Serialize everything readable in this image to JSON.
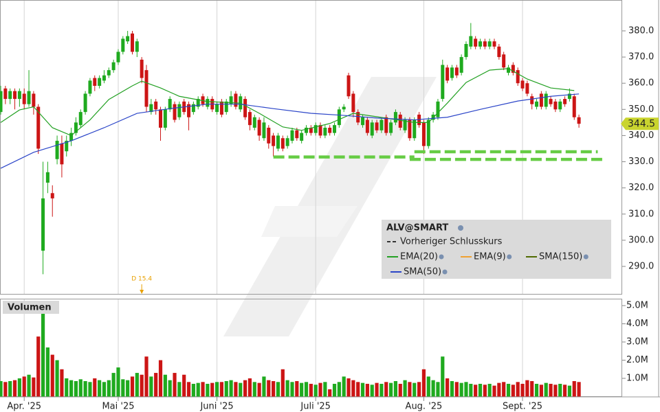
{
  "chart_data": [
    {
      "type": "candlestick",
      "legend_title": "ALV@SMART",
      "xlim": [
        -0.15,
        132.2
      ],
      "ylim": [
        279.5,
        391.8
      ],
      "yticks": [
        {
          "value": 290,
          "label": "290.0"
        },
        {
          "value": 300,
          "label": "300.0"
        },
        {
          "value": 310,
          "label": "310.0"
        },
        {
          "value": 320,
          "label": "320.0"
        },
        {
          "value": 330,
          "label": "330.0"
        },
        {
          "value": 340,
          "label": "340.0"
        },
        {
          "value": 350,
          "label": "350.0"
        },
        {
          "value": 360,
          "label": "360.0"
        },
        {
          "value": 370,
          "label": "370.0"
        },
        {
          "value": 380,
          "label": "380.0"
        }
      ],
      "up_color": "#1faa1f",
      "down_color": "#cc1515",
      "open": [
        349,
        358,
        354,
        357,
        354,
        356,
        352,
        356,
        351,
        296,
        322,
        318,
        331,
        337,
        334,
        338,
        341,
        344,
        349,
        356,
        362,
        359,
        361,
        363,
        365,
        368,
        372,
        376,
        379,
        372,
        369,
        365,
        349,
        353,
        350,
        343,
        350,
        352,
        347,
        353,
        352,
        349,
        351,
        355,
        351,
        354,
        349,
        353,
        349,
        352,
        356,
        350,
        354,
        349,
        343,
        346,
        339,
        343,
        340,
        335,
        339,
        336,
        338,
        342,
        338,
        341,
        343,
        341,
        344,
        340,
        343,
        341,
        344,
        350,
        363,
        356,
        349,
        344,
        346,
        340,
        345,
        342,
        347,
        341,
        345,
        348,
        342,
        346,
        339,
        348,
        345,
        336,
        346,
        347,
        354,
        366,
        362,
        366,
        364,
        370,
        374,
        377,
        374,
        376,
        374,
        376,
        374,
        371,
        364,
        367,
        365,
        361,
        360,
        355,
        351,
        356,
        351,
        354,
        353,
        350,
        354,
        354,
        355,
        347
      ],
      "high": [
        359,
        359,
        358,
        358,
        358,
        358,
        365,
        357,
        352,
        330,
        330,
        321,
        340,
        340,
        340,
        343,
        347,
        350,
        357,
        362,
        363,
        363,
        365,
        366,
        369,
        373,
        378,
        380,
        380,
        377,
        370,
        367,
        354,
        354,
        351,
        351,
        355,
        353,
        353,
        354,
        353,
        353,
        355,
        356,
        355,
        355,
        353,
        354,
        354,
        357,
        357,
        356,
        355,
        350,
        348,
        347,
        347,
        344,
        341,
        341,
        340,
        340,
        343,
        343,
        342,
        344,
        344,
        345,
        345,
        344,
        344,
        345,
        351,
        352,
        364,
        357,
        350,
        348,
        347,
        346,
        346,
        347,
        348,
        346,
        350,
        349,
        347,
        347,
        347,
        349,
        346,
        347,
        349,
        354,
        369,
        367,
        367,
        367,
        371,
        376,
        383,
        378,
        377,
        377,
        377,
        377,
        375,
        372,
        367,
        368,
        366,
        362,
        361,
        356,
        354,
        357,
        357,
        355,
        354,
        354,
        355,
        358,
        356,
        348
      ],
      "low": [
        348,
        352,
        352,
        350,
        351,
        350,
        351,
        348,
        333,
        287,
        318,
        309,
        329,
        324,
        332,
        336,
        340,
        343,
        348,
        355,
        357,
        358,
        360,
        362,
        364,
        367,
        371,
        375,
        371,
        370,
        360,
        349,
        348,
        348,
        338,
        342,
        349,
        345,
        346,
        348,
        342,
        348,
        350,
        351,
        350,
        349,
        348,
        347,
        348,
        351,
        350,
        349,
        346,
        342,
        342,
        338,
        338,
        335,
        332,
        334,
        334,
        335,
        337,
        338,
        337,
        340,
        340,
        340,
        339,
        339,
        340,
        340,
        343,
        349,
        354,
        347,
        344,
        343,
        340,
        339,
        341,
        341,
        340,
        340,
        344,
        342,
        341,
        338,
        338,
        343,
        333,
        335,
        345,
        346,
        353,
        360,
        361,
        362,
        363,
        369,
        373,
        373,
        373,
        373,
        373,
        373,
        369,
        365,
        363,
        363,
        359,
        357,
        355,
        350,
        350,
        350,
        350,
        351,
        349,
        349,
        351,
        353,
        346,
        343
      ],
      "close": [
        357,
        354,
        357,
        354,
        357,
        352,
        357,
        351,
        335,
        316,
        326,
        316,
        338,
        329,
        338,
        341,
        345,
        349,
        356,
        361,
        359,
        362,
        363,
        365,
        368,
        372,
        377,
        378,
        372,
        376,
        362,
        351,
        352,
        350,
        343,
        350,
        354,
        346,
        352,
        349,
        347,
        352,
        354,
        352,
        354,
        350,
        352,
        348,
        353,
        355,
        351,
        355,
        347,
        344,
        347,
        340,
        345,
        337,
        336,
        340,
        335,
        339,
        342,
        339,
        341,
        343,
        341,
        344,
        340,
        343,
        341,
        344,
        350,
        351,
        355,
        349,
        345,
        347,
        341,
        345,
        342,
        346,
        341,
        345,
        349,
        343,
        346,
        339,
        346,
        344,
        336,
        346,
        348,
        353,
        367,
        361,
        366,
        363,
        370,
        375,
        378,
        374,
        376,
        374,
        376,
        374,
        370,
        366,
        366,
        364,
        360,
        358,
        356,
        352,
        353,
        351,
        356,
        352,
        350,
        353,
        352,
        356,
        347,
        344.5
      ],
      "series": [
        {
          "name": "Vorheriger Schlusskurs",
          "color": "#333333",
          "style": "dashed"
        },
        {
          "name": "EMA(20)",
          "color": "#22a022",
          "x": [
            0,
            4,
            7,
            8,
            11,
            15,
            19,
            23,
            28,
            30,
            34,
            38,
            44,
            51,
            55,
            60,
            64,
            70,
            75,
            80,
            88,
            91,
            95,
            99,
            104,
            108,
            112,
            117,
            122
          ],
          "values": [
            345,
            349.8,
            351,
            349,
            343,
            340,
            346,
            353.8,
            359,
            360.8,
            358.2,
            355,
            353,
            352.4,
            348.5,
            343.3,
            342,
            344.6,
            348.5,
            347.2,
            345,
            345,
            352.4,
            360.3,
            365,
            365.6,
            361.6,
            358.2,
            357.2
          ]
        },
        {
          "name": "EMA(9)",
          "color": "#f0a030"
        },
        {
          "name": "SMA(150)",
          "color": "#4f6a00"
        },
        {
          "name": "SMA(50)",
          "color": "#2a44c8",
          "x": [
            0,
            7,
            15,
            22,
            29,
            36,
            44,
            51,
            58,
            66,
            73,
            80,
            88,
            95,
            102,
            110,
            117,
            123
          ],
          "values": [
            327.5,
            333.6,
            338,
            343,
            348.5,
            350.3,
            352,
            352,
            350.3,
            348.5,
            347.7,
            346.7,
            346,
            347,
            350,
            353.2,
            355,
            355.9
          ]
        }
      ],
      "trendlines": [
        {
          "color": "#66cc44",
          "x": [
            58,
            88
          ],
          "values": [
            331.8,
            331.8
          ]
        },
        {
          "color": "#66cc44",
          "x": [
            87,
            128
          ],
          "values": [
            330.9,
            330.9
          ]
        },
        {
          "color": "#66cc44",
          "x": [
            88,
            127
          ],
          "values": [
            333.8,
            333.8
          ]
        }
      ],
      "annotations": [
        {
          "x": 30,
          "text": "D 15.4",
          "color": "#e8a000"
        }
      ]
    },
    {
      "type": "bar",
      "title": "Volumen",
      "xlim": [
        -0.15,
        132.2
      ],
      "ylim": [
        0,
        5380000
      ],
      "yticks": [
        {
          "value": 1000000,
          "label": "1.0M"
        },
        {
          "value": 2000000,
          "label": "2.0M"
        },
        {
          "value": 3000000,
          "label": "3.0M"
        },
        {
          "value": 4000000,
          "label": "4.0M"
        },
        {
          "value": 5000000,
          "label": "5.0M"
        }
      ],
      "xticks": [
        {
          "value": 5,
          "label": "Apr. '25"
        },
        {
          "value": 25,
          "label": "Mai '25"
        },
        {
          "value": 46,
          "label": "Juni '25"
        },
        {
          "value": 67,
          "label": "Juli '25"
        },
        {
          "value": 90,
          "label": "Aug. '25"
        },
        {
          "value": 111,
          "label": "Sept. '25"
        }
      ],
      "values": [
        850000,
        800000,
        850000,
        900000,
        1000000,
        1100000,
        1200000,
        1050000,
        3300000,
        5200000,
        2700000,
        2300000,
        2000000,
        1500000,
        1000000,
        900000,
        850000,
        950000,
        850000,
        800000,
        1000000,
        900000,
        800000,
        900000,
        1300000,
        1600000,
        950000,
        900000,
        1100000,
        1300000,
        1200000,
        2200000,
        1100000,
        1300000,
        2000000,
        1200000,
        900000,
        1300000,
        800000,
        1200000,
        800000,
        700000,
        750000,
        800000,
        700000,
        750000,
        800000,
        800000,
        850000,
        900000,
        800000,
        750000,
        900000,
        1000000,
        800000,
        750000,
        1100000,
        900000,
        850000,
        800000,
        1500000,
        900000,
        800000,
        850000,
        750000,
        800000,
        700000,
        650000,
        750000,
        800000,
        400000,
        700000,
        800000,
        1100000,
        1000000,
        900000,
        800000,
        750000,
        700000,
        650000,
        750000,
        700000,
        800000,
        750000,
        850000,
        700000,
        900000,
        800000,
        750000,
        800000,
        1500000,
        1100000,
        900000,
        800000,
        2200000,
        1000000,
        850000,
        800000,
        750000,
        800000,
        700000,
        650000,
        700000,
        650000,
        700000,
        600000,
        750000,
        800000,
        700000,
        650000,
        800000,
        700000,
        900000,
        850000,
        700000,
        650000,
        750000,
        700000,
        650000,
        700000,
        650000,
        600000,
        850000,
        800000
      ]
    }
  ]
}
